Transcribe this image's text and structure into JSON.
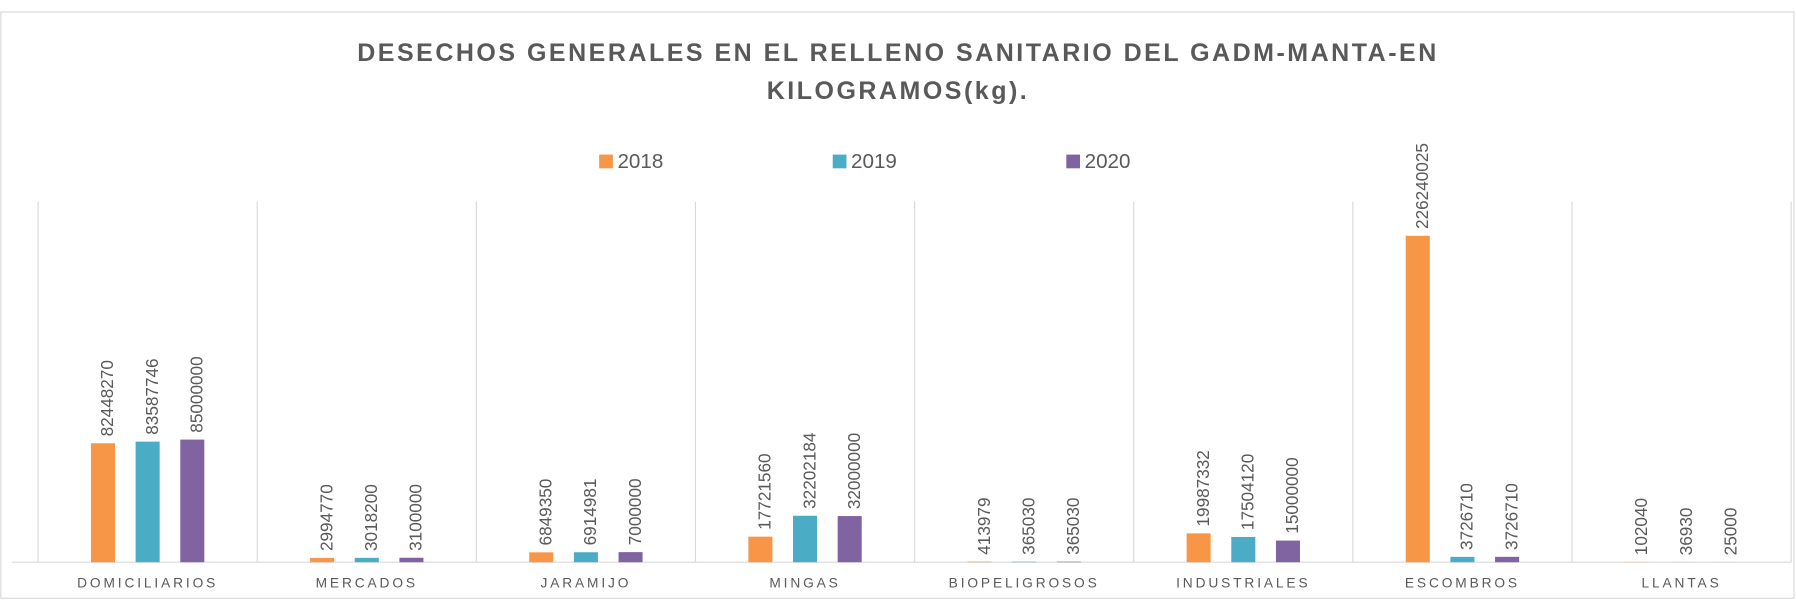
{
  "chart_data": {
    "type": "bar",
    "title": "DESECHOS GENERALES EN EL RELLENO SANITARIO DEL GADM-MANTA-EN KILOGRAMOS(kg).",
    "categories": [
      "DOMICILIARIOS",
      "MERCADOS",
      "JARAMIJO",
      "MINGAS",
      "BIOPELIGROSOS",
      "INDUSTRIALES",
      "ESCOMBROS",
      "LLANTAS"
    ],
    "series": [
      {
        "name": "2018",
        "color": "#f79646",
        "values": [
          82448270,
          2994770,
          6849350,
          17721560,
          413979,
          19987332,
          226240025,
          102040
        ]
      },
      {
        "name": "2019",
        "color": "#4bacc6",
        "values": [
          83587746,
          3018200,
          6914981,
          32202184,
          365030,
          17504120,
          3726710,
          36930
        ]
      },
      {
        "name": "2020",
        "color": "#8064a2",
        "values": [
          85000000,
          3100000,
          7000000,
          32000000,
          365030,
          15000000,
          3726710,
          25000
        ]
      }
    ],
    "ylim": [
      0,
      250000000
    ],
    "legend": "top"
  }
}
